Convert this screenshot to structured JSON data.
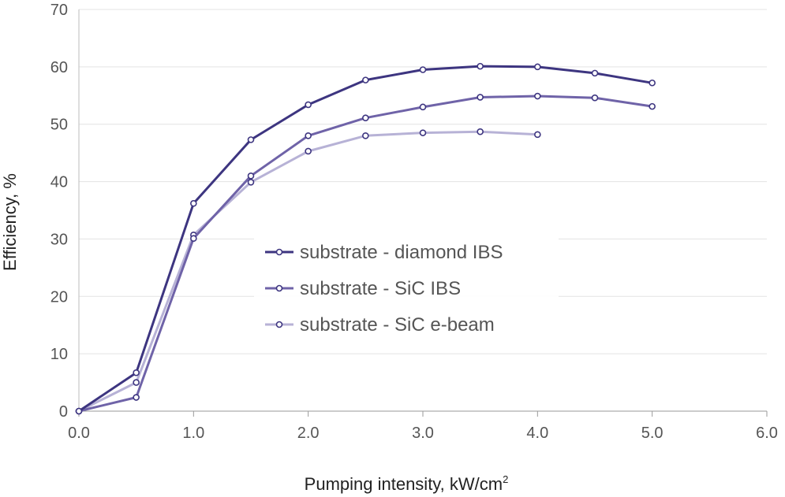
{
  "chart_data": {
    "type": "line",
    "xlabel": "Pumping intensity, kW/cm",
    "xlabel_superscript": "2",
    "ylabel": "Efficiency, %",
    "xlim": [
      0,
      6
    ],
    "ylim": [
      0,
      70
    ],
    "x_ticks": [
      "0.0",
      "1.0",
      "2.0",
      "3.0",
      "4.0",
      "5.0",
      "6.0"
    ],
    "y_ticks": [
      "0",
      "10",
      "20",
      "30",
      "40",
      "50",
      "60",
      "70"
    ],
    "grid": "horizontal",
    "legend_position": "center",
    "series": [
      {
        "name": "substrate - diamond IBS",
        "color": "#3d3580",
        "x": [
          0,
          0.5,
          1.0,
          1.5,
          2.0,
          2.5,
          3.0,
          3.5,
          4.0,
          4.5,
          5.0
        ],
        "y": [
          0,
          6.7,
          36.2,
          47.3,
          53.4,
          57.7,
          59.5,
          60.1,
          60.0,
          58.9,
          57.2
        ]
      },
      {
        "name": "substrate - SiC IBS",
        "color": "#6f63a8",
        "x": [
          0,
          0.5,
          1.0,
          1.5,
          2.0,
          2.5,
          3.0,
          3.5,
          4.0,
          4.5,
          5.0
        ],
        "y": [
          0,
          2.4,
          30.1,
          41.0,
          48.0,
          51.1,
          53.0,
          54.7,
          54.9,
          54.6,
          53.1
        ]
      },
      {
        "name": "substrate - SiC e-beam",
        "color": "#b7b2d6",
        "x": [
          0,
          0.5,
          1.0,
          1.5,
          2.0,
          2.5,
          3.0,
          3.5,
          4.0
        ],
        "y": [
          0,
          5.0,
          30.7,
          39.9,
          45.3,
          48.0,
          48.5,
          48.7,
          48.2
        ]
      }
    ]
  }
}
